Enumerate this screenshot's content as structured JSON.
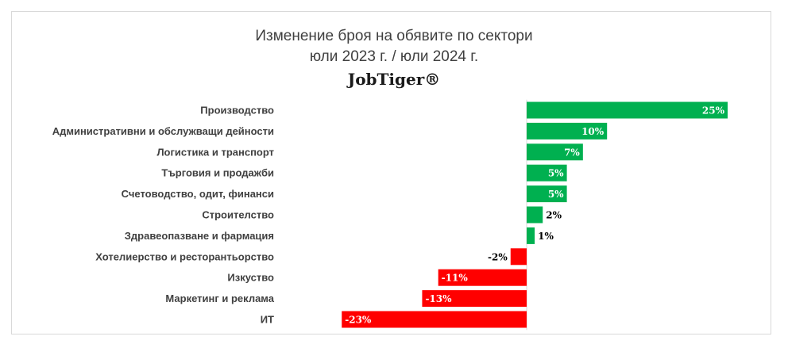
{
  "chart_data": {
    "type": "bar",
    "orientation": "horizontal",
    "title": "Изменение броя на обявите по сектори",
    "subtitle": "юли 2023 г. / юли 2024 г.",
    "brand": "JobTiger®",
    "categories": [
      "Производство",
      "Административни и обслужващи дейности",
      "Логистика и транспорт",
      "Търговия и продажби",
      "Счетоводство, одит, финанси",
      "Строителство",
      "Здравеопазване и фармация",
      "Хотелиерство и ресторантьорство",
      "Изкуство",
      "Маркетинг и реклама",
      "ИТ"
    ],
    "values": [
      25,
      10,
      7,
      5,
      5,
      2,
      1,
      -2,
      -11,
      -13,
      -23
    ],
    "data_labels": [
      "25%",
      "10%",
      "7%",
      "5%",
      "5%",
      "2%",
      "1%",
      "-2%",
      "-11%",
      "-13%",
      "-23%"
    ],
    "xlim": [
      -23,
      25
    ],
    "colors": {
      "positive": "#00b050",
      "negative": "#ff0000"
    },
    "grid": false,
    "legend": "none"
  }
}
